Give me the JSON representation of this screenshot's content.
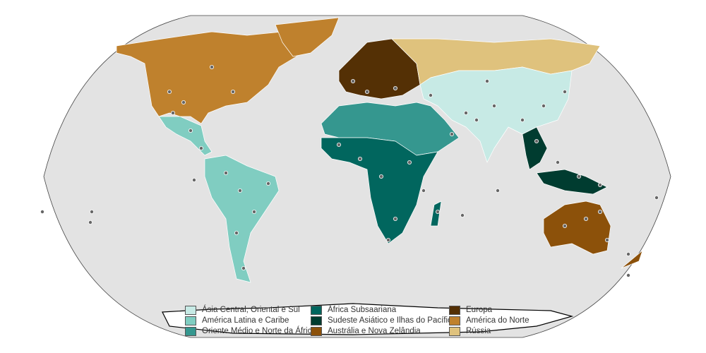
{
  "legend": {
    "items": [
      {
        "label": "Ásia Central, Oriental e Sul",
        "color": "#c7eae5"
      },
      {
        "label": "América Latina e Caribe",
        "color": "#80cdc1"
      },
      {
        "label": "Oriente Médio e Norte da África",
        "color": "#35978f"
      },
      {
        "label": "África Subsaariana",
        "color": "#01665e"
      },
      {
        "label": "Sudeste Asiático e Ilhas do Pacífico",
        "color": "#003c30"
      },
      {
        "label": "Austrália e Nova Zelândia",
        "color": "#8c510a"
      },
      {
        "label": "Europa",
        "color": "#543005"
      },
      {
        "label": "América do Norte",
        "color": "#bf812d"
      },
      {
        "label": "Rússia",
        "color": "#dfc27d"
      }
    ]
  },
  "colors": {
    "ocean": "#e3e3e3",
    "point_fill": "#666666",
    "point_stroke": "#ffffff"
  }
}
